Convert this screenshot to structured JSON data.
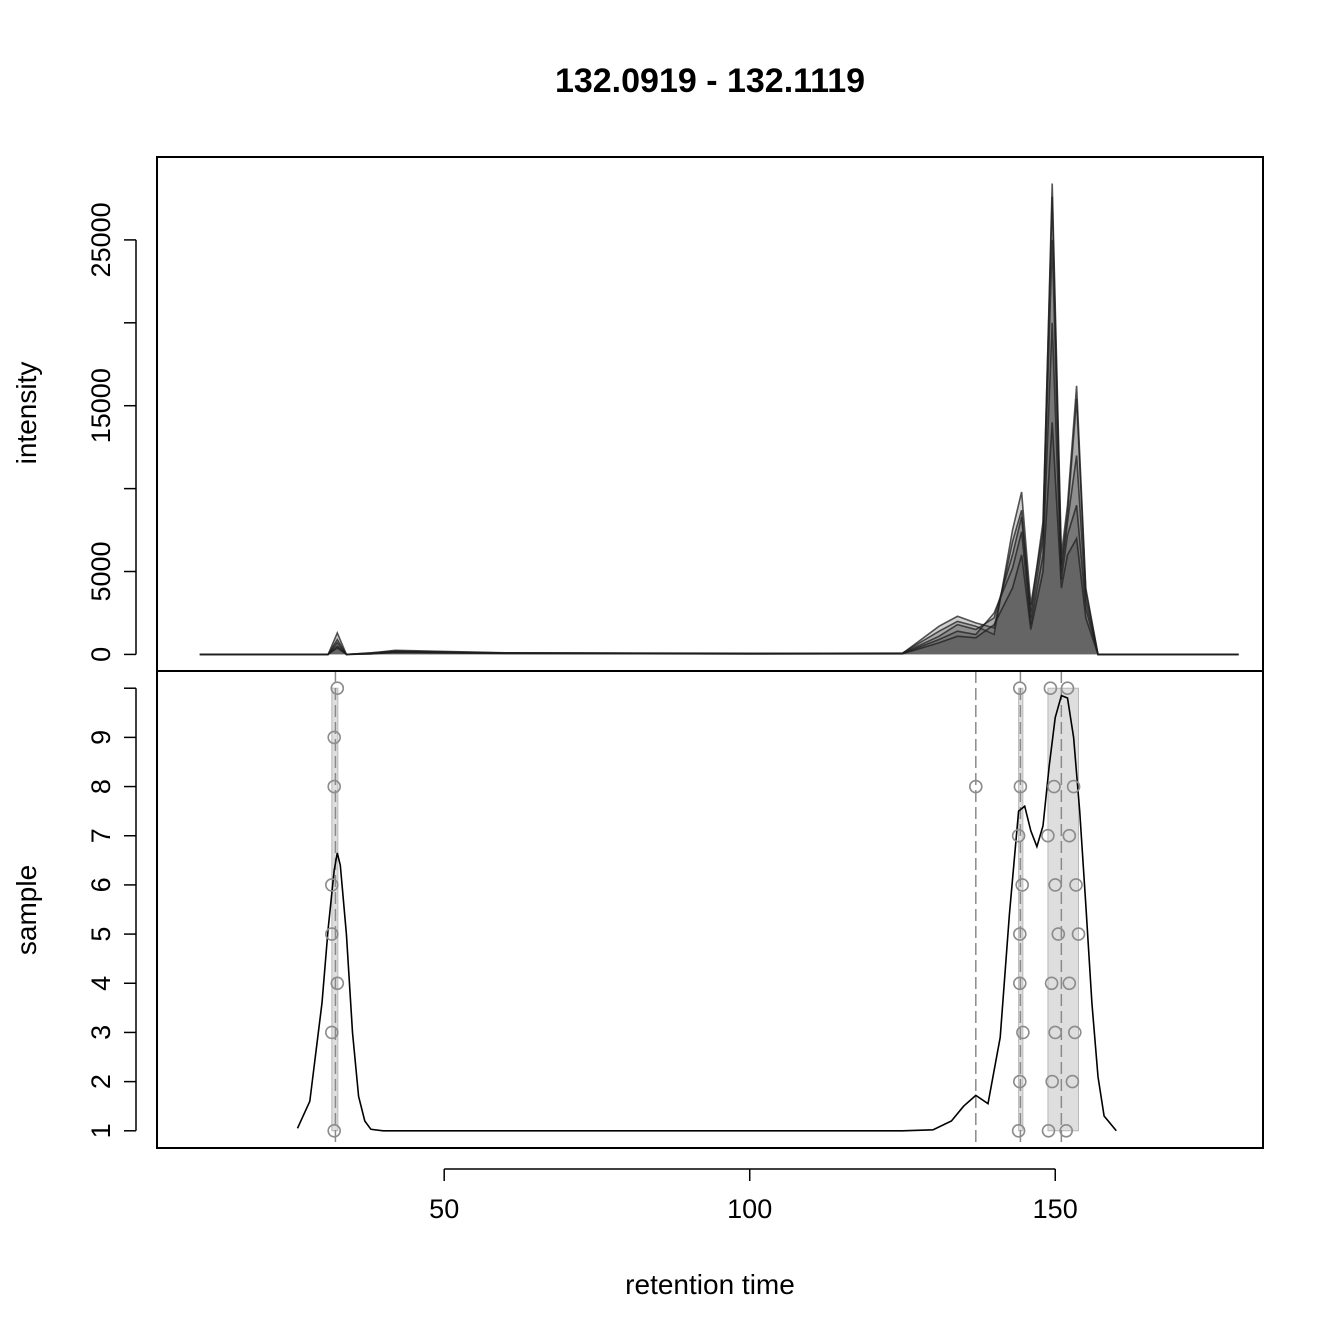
{
  "chart_data": [
    {
      "panel": "top",
      "type": "area",
      "title": "132.0919 - 132.1119",
      "xlabel": "",
      "ylabel": "intensity",
      "xlim": [
        3,
        184
      ],
      "ylim": [
        -1000,
        30000
      ],
      "yticks": [
        0,
        5000,
        15000,
        25000
      ],
      "ytick_labels": [
        "0",
        "5000",
        "15000",
        "25000"
      ],
      "minor_yticks": [
        10000,
        20000
      ],
      "series": [
        {
          "x": [
            10,
            25,
            31,
            32.5,
            34,
            38,
            42,
            60,
            100,
            125,
            131,
            134,
            137,
            140,
            143,
            144.5,
            146,
            148,
            149.5,
            151,
            152,
            153.5,
            155,
            157,
            160,
            180
          ],
          "y": [
            0,
            0,
            0,
            1300,
            0,
            100,
            200,
            80,
            60,
            80,
            1400,
            2000,
            1700,
            1200,
            7500,
            9800,
            3000,
            7500,
            28400,
            6000,
            9000,
            16200,
            4000,
            0,
            0,
            0
          ]
        },
        {
          "x": [
            10,
            25,
            31,
            32.5,
            34,
            38,
            42,
            60,
            100,
            125,
            131,
            134,
            137,
            140,
            143,
            144.5,
            146,
            148,
            149.5,
            151,
            152,
            153.5,
            155,
            157,
            160,
            180
          ],
          "y": [
            0,
            0,
            0,
            900,
            0,
            80,
            250,
            100,
            70,
            60,
            1700,
            2300,
            1900,
            1600,
            6800,
            8700,
            2600,
            8000,
            27600,
            5400,
            8500,
            15400,
            3800,
            0,
            0,
            0
          ]
        },
        {
          "x": [
            10,
            25,
            31,
            32.5,
            34,
            38,
            42,
            60,
            100,
            125,
            131,
            134,
            137,
            140,
            143,
            144.5,
            146,
            148,
            149.5,
            151,
            152,
            153.5,
            155,
            157,
            160,
            180
          ],
          "y": [
            0,
            0,
            0,
            700,
            0,
            60,
            180,
            90,
            50,
            70,
            1100,
            1800,
            1500,
            2200,
            6000,
            8300,
            2200,
            7000,
            25000,
            5000,
            8000,
            12000,
            3300,
            0,
            0,
            0
          ]
        },
        {
          "x": [
            10,
            25,
            31,
            32.5,
            34,
            38,
            42,
            60,
            100,
            125,
            131,
            134,
            137,
            140,
            143,
            144.5,
            146,
            148,
            149.5,
            151,
            152,
            153.5,
            155,
            157,
            160,
            180
          ],
          "y": [
            0,
            0,
            0,
            500,
            0,
            40,
            150,
            70,
            40,
            50,
            900,
            1400,
            1200,
            2500,
            5200,
            7400,
            1800,
            6000,
            20000,
            4500,
            7200,
            9000,
            2800,
            0,
            0,
            0
          ]
        },
        {
          "x": [
            10,
            25,
            31,
            32.5,
            34,
            38,
            42,
            60,
            100,
            125,
            131,
            134,
            137,
            140,
            143,
            144.5,
            146,
            148,
            149.5,
            151,
            152,
            153.5,
            155,
            157,
            160,
            180
          ],
          "y": [
            0,
            0,
            0,
            400,
            0,
            30,
            120,
            60,
            30,
            40,
            700,
            1100,
            1000,
            1800,
            4000,
            6000,
            1500,
            5000,
            14000,
            4000,
            6000,
            7000,
            2200,
            0,
            0,
            0
          ]
        }
      ]
    },
    {
      "panel": "bottom",
      "type": "scatter",
      "xlabel": "retention time",
      "ylabel": "sample",
      "xlim": [
        3,
        184
      ],
      "ylim": [
        0.65,
        10.35
      ],
      "xticks": [
        50,
        100,
        150
      ],
      "xtick_labels": [
        "50",
        "100",
        "150"
      ],
      "yticks": [
        1,
        2,
        3,
        4,
        5,
        6,
        7,
        8,
        9
      ],
      "ytick_labels": [
        "1",
        "2",
        "3",
        "4",
        "5",
        "6",
        "7",
        "8",
        "9"
      ],
      "points": [
        {
          "x": 32.5,
          "y": 10
        },
        {
          "x": 32.0,
          "y": 9
        },
        {
          "x": 32.0,
          "y": 8
        },
        {
          "x": 31.6,
          "y": 6
        },
        {
          "x": 31.6,
          "y": 5
        },
        {
          "x": 32.5,
          "y": 4
        },
        {
          "x": 31.6,
          "y": 3
        },
        {
          "x": 32.0,
          "y": 1
        },
        {
          "x": 137,
          "y": 8
        },
        {
          "x": 144.2,
          "y": 10
        },
        {
          "x": 144.3,
          "y": 8
        },
        {
          "x": 144.0,
          "y": 7
        },
        {
          "x": 144.6,
          "y": 6
        },
        {
          "x": 144.2,
          "y": 5
        },
        {
          "x": 144.2,
          "y": 4
        },
        {
          "x": 144.7,
          "y": 3
        },
        {
          "x": 144.2,
          "y": 2
        },
        {
          "x": 144.0,
          "y": 1
        },
        {
          "x": 149.2,
          "y": 10
        },
        {
          "x": 152.0,
          "y": 10
        },
        {
          "x": 149.8,
          "y": 8
        },
        {
          "x": 153.0,
          "y": 8
        },
        {
          "x": 148.8,
          "y": 7
        },
        {
          "x": 152.3,
          "y": 7
        },
        {
          "x": 150.0,
          "y": 6
        },
        {
          "x": 153.4,
          "y": 6
        },
        {
          "x": 150.5,
          "y": 5
        },
        {
          "x": 153.8,
          "y": 5
        },
        {
          "x": 149.4,
          "y": 4
        },
        {
          "x": 152.3,
          "y": 4
        },
        {
          "x": 150.0,
          "y": 3
        },
        {
          "x": 153.2,
          "y": 3
        },
        {
          "x": 149.5,
          "y": 2
        },
        {
          "x": 152.8,
          "y": 2
        },
        {
          "x": 148.9,
          "y": 1
        },
        {
          "x": 151.8,
          "y": 1
        }
      ],
      "density": {
        "x": [
          26,
          28,
          30,
          31,
          32,
          32.5,
          33,
          34,
          35,
          36,
          37,
          38,
          40,
          60,
          100,
          125,
          130,
          133,
          135,
          137,
          139,
          141,
          142.5,
          144,
          145,
          146,
          147,
          148,
          149,
          150,
          151,
          152,
          153,
          154,
          155,
          156,
          157,
          158,
          160
        ],
        "y": [
          1.05,
          1.6,
          3.6,
          5.1,
          6.3,
          6.65,
          6.4,
          5.0,
          3.0,
          1.7,
          1.2,
          1.03,
          1.0,
          1.0,
          1.0,
          1.0,
          1.02,
          1.2,
          1.5,
          1.72,
          1.55,
          2.9,
          5.4,
          7.5,
          7.6,
          7.1,
          6.78,
          7.2,
          8.4,
          9.4,
          9.85,
          9.8,
          9.0,
          7.5,
          5.6,
          3.6,
          2.1,
          1.3,
          1.0
        ]
      },
      "groups": [
        {
          "x_min": 31.6,
          "x_max": 32.6,
          "median": 32.2,
          "shaded": true
        },
        {
          "x_min": 137,
          "x_max": 137,
          "median": 137,
          "shaded": false
        },
        {
          "x_min": 144.0,
          "x_max": 144.7,
          "median": 144.3,
          "shaded": true
        },
        {
          "x_min": 148.8,
          "x_max": 153.8,
          "median": 151.0,
          "shaded": true
        }
      ]
    }
  ]
}
